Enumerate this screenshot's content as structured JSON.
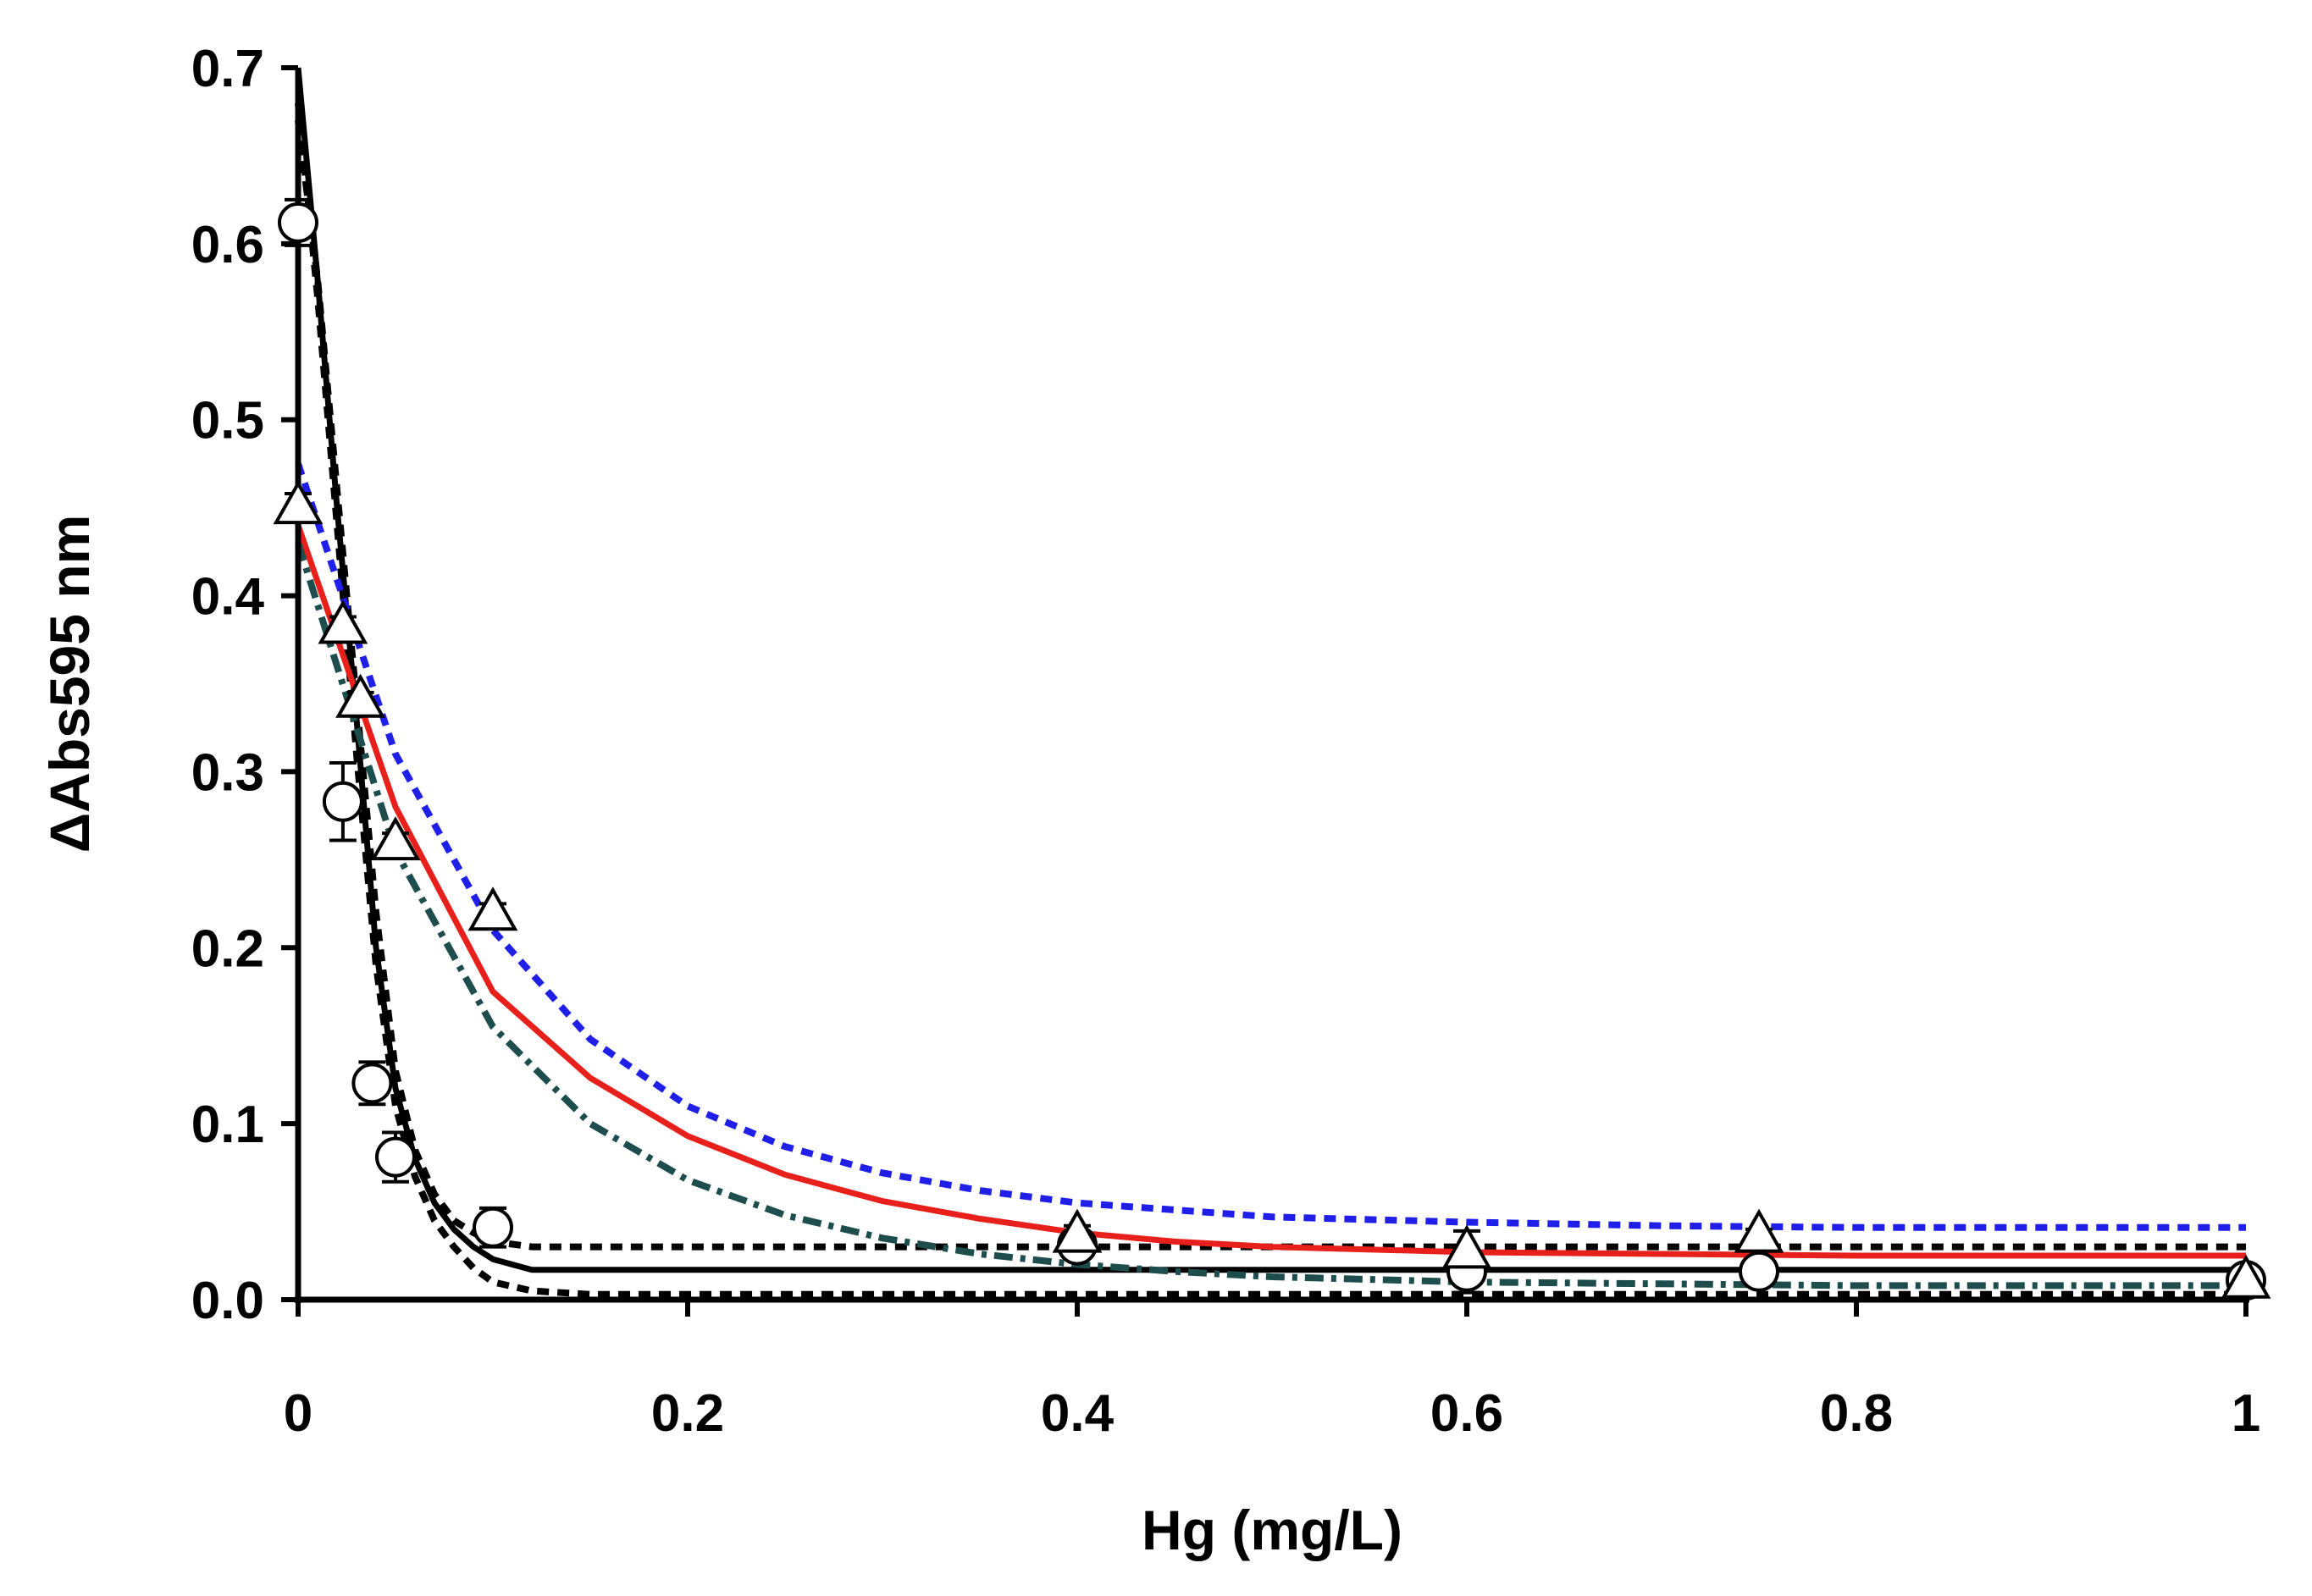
{
  "chart_data": {
    "type": "scatter",
    "title": "",
    "xlabel": "Hg (mg/L)",
    "ylabel": "ΔAbs595 nm",
    "xlim": [
      0,
      1
    ],
    "ylim": [
      0,
      0.7
    ],
    "x_ticks": [
      {
        "value": 0,
        "label": "0"
      },
      {
        "value": 0.2,
        "label": "0.2"
      },
      {
        "value": 0.4,
        "label": "0.4"
      },
      {
        "value": 0.6,
        "label": "0.6"
      },
      {
        "value": 0.8,
        "label": "0.8"
      },
      {
        "value": 1,
        "label": "1"
      }
    ],
    "y_ticks": [
      {
        "value": 0,
        "label": "0.0"
      },
      {
        "value": 0.1,
        "label": "0.1"
      },
      {
        "value": 0.2,
        "label": "0.2"
      },
      {
        "value": 0.3,
        "label": "0.3"
      },
      {
        "value": 0.4,
        "label": "0.4"
      },
      {
        "value": 0.5,
        "label": "0.5"
      },
      {
        "value": 0.6,
        "label": "0.6"
      },
      {
        "value": 0.7,
        "label": "0.7"
      }
    ],
    "grid": false,
    "series": [
      {
        "name": "circles",
        "marker": "circle",
        "x": [
          0,
          0.023,
          0.038,
          0.05,
          0.1,
          0.4,
          0.6,
          0.75,
          1.0
        ],
        "y": [
          0.612,
          0.283,
          0.123,
          0.081,
          0.041,
          0.031,
          0.016,
          0.016,
          0.011
        ],
        "err": [
          0.013,
          0.022,
          0.012,
          0.014,
          0.011,
          0.006,
          0.012,
          0.004,
          0.003
        ]
      },
      {
        "name": "triangles",
        "marker": "triangle",
        "x": [
          0,
          0.023,
          0.032,
          0.05,
          0.1,
          0.4,
          0.6,
          0.75,
          1.0
        ],
        "y": [
          0.45,
          0.382,
          0.34,
          0.259,
          0.219,
          0.036,
          0.027,
          0.036,
          0.01
        ],
        "err": [
          0.008,
          0.006,
          0.005,
          0.006,
          0.006,
          0.006,
          0.012,
          0.004,
          0.003
        ]
      }
    ],
    "fit_curves": [
      {
        "name": "circles-fit",
        "style": "solid",
        "color": "#000000",
        "x": [
          0,
          0.01,
          0.02,
          0.03,
          0.04,
          0.05,
          0.06,
          0.07,
          0.08,
          0.09,
          0.1,
          0.12,
          1.0
        ],
        "y": [
          0.7,
          0.58,
          0.45,
          0.33,
          0.2,
          0.12,
          0.08,
          0.055,
          0.04,
          0.03,
          0.023,
          0.017,
          0.017
        ]
      },
      {
        "name": "circles-upper-bound",
        "style": "dash",
        "color": "#000000",
        "x": [
          0,
          0.01,
          0.02,
          0.03,
          0.04,
          0.05,
          0.06,
          0.07,
          0.08,
          0.09,
          0.1,
          0.12,
          0.15,
          1.0
        ],
        "y": [
          0.67,
          0.58,
          0.46,
          0.34,
          0.22,
          0.13,
          0.085,
          0.06,
          0.045,
          0.038,
          0.033,
          0.03,
          0.03,
          0.03
        ]
      },
      {
        "name": "circles-lower-bound",
        "style": "dash",
        "color": "#000000",
        "x": [
          0,
          0.01,
          0.02,
          0.03,
          0.04,
          0.05,
          0.06,
          0.07,
          0.08,
          0.09,
          0.1,
          0.12,
          0.15,
          1.0
        ],
        "y": [
          0.68,
          0.57,
          0.44,
          0.31,
          0.19,
          0.11,
          0.07,
          0.045,
          0.03,
          0.018,
          0.01,
          0.005,
          0.003,
          0.003
        ]
      },
      {
        "name": "triangles-fit",
        "style": "solid",
        "color": "#e8201c",
        "x": [
          0,
          0.05,
          0.1,
          0.15,
          0.2,
          0.25,
          0.3,
          0.35,
          0.4,
          0.45,
          0.5,
          0.6,
          0.7,
          0.8,
          0.9,
          1.0
        ],
        "y": [
          0.44,
          0.28,
          0.175,
          0.126,
          0.093,
          0.071,
          0.056,
          0.046,
          0.038,
          0.033,
          0.03,
          0.027,
          0.026,
          0.025,
          0.025,
          0.025
        ]
      },
      {
        "name": "triangles-upper-bound",
        "style": "dash",
        "color": "#1f1fe8",
        "x": [
          0,
          0.05,
          0.1,
          0.15,
          0.2,
          0.25,
          0.3,
          0.35,
          0.4,
          0.5,
          0.6,
          0.7,
          0.8,
          0.9,
          1.0
        ],
        "y": [
          0.475,
          0.31,
          0.21,
          0.148,
          0.11,
          0.087,
          0.072,
          0.062,
          0.055,
          0.047,
          0.044,
          0.042,
          0.041,
          0.041,
          0.041
        ]
      },
      {
        "name": "triangles-lower-bound",
        "style": "dashdot",
        "color": "#1e4d4d",
        "x": [
          0,
          0.05,
          0.1,
          0.15,
          0.2,
          0.25,
          0.3,
          0.35,
          0.4,
          0.45,
          0.5,
          0.6,
          0.7,
          0.8,
          0.9,
          1.0
        ],
        "y": [
          0.43,
          0.255,
          0.155,
          0.1,
          0.068,
          0.048,
          0.035,
          0.026,
          0.02,
          0.016,
          0.013,
          0.01,
          0.009,
          0.008,
          0.008,
          0.008
        ]
      }
    ]
  }
}
